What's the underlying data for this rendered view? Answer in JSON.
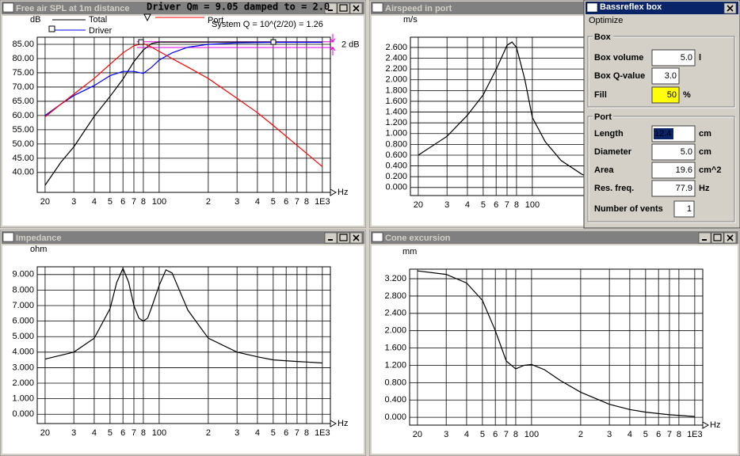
{
  "chart_data": [
    {
      "type": "line",
      "title": "Free air SPL at 1m distance",
      "ylabel": "dB",
      "xlabel": "Hz",
      "xscale": "log",
      "grid": true,
      "xlim": [
        17.9,
        1120
      ],
      "ylim": [
        33,
        87.5
      ],
      "xticks": [
        20,
        {
          "value": 30,
          "label": "3"
        },
        {
          "value": 40,
          "label": "4"
        },
        {
          "value": 50,
          "label": "5"
        },
        {
          "value": 60,
          "label": "6"
        },
        {
          "value": 70,
          "label": "7"
        },
        {
          "value": 80,
          "label": "8"
        },
        100,
        {
          "value": 200,
          "label": "2"
        },
        {
          "value": 300,
          "label": "3"
        },
        {
          "value": 400,
          "label": "4"
        },
        {
          "value": 500,
          "label": "5"
        },
        {
          "value": 600,
          "label": "6"
        },
        {
          "value": 700,
          "label": "7"
        },
        {
          "value": 800,
          "label": "8"
        },
        {
          "value": 1000,
          "label": "1E3"
        }
      ],
      "yticks": [
        {
          "value": 40,
          "label": "40.00"
        },
        {
          "value": 45,
          "label": "45.00"
        },
        {
          "value": 50,
          "label": "50.00"
        },
        {
          "value": 55,
          "label": "55.00"
        },
        {
          "value": 60,
          "label": "60.00"
        },
        {
          "value": 65,
          "label": "65.00"
        },
        {
          "value": 70,
          "label": "70.00"
        },
        {
          "value": 75,
          "label": "75.00"
        },
        {
          "value": 80,
          "label": "80.00"
        },
        {
          "value": 85,
          "label": "85.00"
        }
      ],
      "x": [
        20,
        25,
        30,
        40,
        50,
        60,
        70,
        80,
        90,
        100,
        120,
        150,
        200,
        300,
        400,
        500,
        700,
        1000
      ],
      "series": [
        {
          "name": "Total",
          "color": "#000000",
          "values": [
            35.5,
            43.6,
            49,
            59.7,
            66.7,
            72.8,
            78.9,
            83,
            85.3,
            85.8,
            85.8,
            85.8,
            85.8,
            85.8,
            85.8,
            85.8,
            85.8,
            85.8
          ]
        },
        {
          "name": "Driver",
          "color": "#0000ff",
          "values": [
            60,
            64,
            67,
            70.5,
            74,
            75.5,
            75.5,
            74.8,
            77,
            79.5,
            82,
            84,
            85,
            85.5,
            85.6,
            85.7,
            85.7,
            85.7
          ]
        },
        {
          "name": "Port",
          "color": "#ff0000",
          "values": [
            59.5,
            64,
            67.5,
            73,
            78,
            82,
            84.5,
            85.3,
            84,
            82.5,
            80,
            77,
            73,
            66,
            61,
            56.5,
            49.5,
            42
          ]
        }
      ],
      "header": "Driver Qm = 9.05 damped to = 2.0",
      "system_q": "System Q = 10^(2/20) = 1.26",
      "reference_label": "2 dB",
      "reference_color": "#e000e0",
      "reference_lines": [
        85.9,
        83.9
      ]
    },
    {
      "type": "line",
      "title": "Airspeed in port",
      "ylabel": "m/s",
      "xlabel": "Hz",
      "xscale": "log",
      "grid": true,
      "xlim": [
        17.9,
        1120
      ],
      "ylim": [
        -0.15,
        2.79
      ],
      "xticks": [
        20,
        {
          "value": 30,
          "label": "3"
        },
        {
          "value": 40,
          "label": "4"
        },
        {
          "value": 50,
          "label": "5"
        },
        {
          "value": 60,
          "label": "6"
        },
        {
          "value": 70,
          "label": "7"
        },
        {
          "value": 80,
          "label": "8"
        },
        100
      ],
      "yticks": [
        {
          "value": 0,
          "label": "0.000"
        },
        {
          "value": 0.2,
          "label": "0.200"
        },
        {
          "value": 0.4,
          "label": "0.400"
        },
        {
          "value": 0.6,
          "label": "0.600"
        },
        {
          "value": 0.8,
          "label": "0.800"
        },
        {
          "value": 1.0,
          "label": "1.000"
        },
        {
          "value": 1.2,
          "label": "1.200"
        },
        {
          "value": 1.4,
          "label": "1.400"
        },
        {
          "value": 1.6,
          "label": "1.600"
        },
        {
          "value": 1.8,
          "label": "1.800"
        },
        {
          "value": 2.0,
          "label": "2.000"
        },
        {
          "value": 2.2,
          "label": "2.200"
        },
        {
          "value": 2.4,
          "label": "2.400"
        },
        {
          "value": 2.6,
          "label": "2.600"
        }
      ],
      "x": [
        20,
        30,
        40,
        50,
        60,
        70,
        75,
        80,
        90,
        100,
        120,
        150,
        200,
        210
      ],
      "series": [
        {
          "color": "#000000",
          "values": [
            0.6,
            0.95,
            1.34,
            1.72,
            2.19,
            2.64,
            2.7,
            2.6,
            2.0,
            1.3,
            0.85,
            0.5,
            0.25,
            0.22
          ]
        }
      ]
    },
    {
      "type": "line",
      "title": "Impedance",
      "ylabel": "ohm",
      "xlabel": "Hz",
      "xscale": "log",
      "grid": true,
      "xlim": [
        17.9,
        1120
      ],
      "ylim": [
        -0.6,
        9.5
      ],
      "xticks": [
        20,
        {
          "value": 30,
          "label": "3"
        },
        {
          "value": 40,
          "label": "4"
        },
        {
          "value": 50,
          "label": "5"
        },
        {
          "value": 60,
          "label": "6"
        },
        {
          "value": 70,
          "label": "7"
        },
        {
          "value": 80,
          "label": "8"
        },
        100,
        {
          "value": 200,
          "label": "2"
        },
        {
          "value": 300,
          "label": "3"
        },
        {
          "value": 400,
          "label": "4"
        },
        {
          "value": 500,
          "label": "5"
        },
        {
          "value": 600,
          "label": "6"
        },
        {
          "value": 700,
          "label": "7"
        },
        {
          "value": 800,
          "label": "8"
        },
        {
          "value": 1000,
          "label": "1E3"
        }
      ],
      "yticks": [
        {
          "value": 0,
          "label": "0.000"
        },
        {
          "value": 1,
          "label": "1.000"
        },
        {
          "value": 2,
          "label": "2.000"
        },
        {
          "value": 3,
          "label": "3.000"
        },
        {
          "value": 4,
          "label": "4.000"
        },
        {
          "value": 5,
          "label": "5.000"
        },
        {
          "value": 6,
          "label": "6.000"
        },
        {
          "value": 7,
          "label": "7.000"
        },
        {
          "value": 8,
          "label": "8.000"
        },
        {
          "value": 9,
          "label": "9.000"
        }
      ],
      "x": [
        20,
        30,
        40,
        50,
        55,
        60,
        65,
        70,
        75,
        80,
        85,
        90,
        100,
        110,
        120,
        150,
        200,
        300,
        400,
        500,
        700,
        1000
      ],
      "series": [
        {
          "color": "#000000",
          "values": [
            3.55,
            4.0,
            4.9,
            6.8,
            8.5,
            9.4,
            8.5,
            7.0,
            6.2,
            6.0,
            6.2,
            6.9,
            8.3,
            9.3,
            9.1,
            6.7,
            4.9,
            4.0,
            3.7,
            3.5,
            3.4,
            3.3
          ]
        }
      ]
    },
    {
      "type": "line",
      "title": "Cone excursion",
      "ylabel": "mm",
      "xlabel": "Hz",
      "xscale": "log",
      "grid": true,
      "xlim": [
        17.9,
        1120
      ],
      "ylim": [
        -0.18,
        3.42
      ],
      "xticks": [
        20,
        {
          "value": 30,
          "label": "3"
        },
        {
          "value": 40,
          "label": "4"
        },
        {
          "value": 50,
          "label": "5"
        },
        {
          "value": 60,
          "label": "6"
        },
        {
          "value": 70,
          "label": "7"
        },
        {
          "value": 80,
          "label": "8"
        },
        100,
        {
          "value": 200,
          "label": "2"
        },
        {
          "value": 300,
          "label": "3"
        },
        {
          "value": 400,
          "label": "4"
        },
        {
          "value": 500,
          "label": "5"
        },
        {
          "value": 600,
          "label": "6"
        },
        {
          "value": 700,
          "label": "7"
        },
        {
          "value": 800,
          "label": "8"
        },
        {
          "value": 1000,
          "label": "1E3"
        }
      ],
      "yticks": [
        {
          "value": 0,
          "label": "0.000"
        },
        {
          "value": 0.4,
          "label": "0.400"
        },
        {
          "value": 0.8,
          "label": "0.800"
        },
        {
          "value": 1.2,
          "label": "1.200"
        },
        {
          "value": 1.6,
          "label": "1.600"
        },
        {
          "value": 2.0,
          "label": "2.000"
        },
        {
          "value": 2.4,
          "label": "2.400"
        },
        {
          "value": 2.8,
          "label": "2.800"
        },
        {
          "value": 3.2,
          "label": "3.200"
        }
      ],
      "x": [
        20,
        30,
        40,
        50,
        60,
        70,
        80,
        90,
        100,
        120,
        150,
        200,
        300,
        400,
        500,
        700,
        1000
      ],
      "series": [
        {
          "color": "#000000",
          "values": [
            3.38,
            3.3,
            3.1,
            2.7,
            2.0,
            1.3,
            1.12,
            1.2,
            1.22,
            1.1,
            0.85,
            0.58,
            0.3,
            0.18,
            0.12,
            0.06,
            0.02
          ]
        }
      ]
    }
  ],
  "dialog": {
    "title": "Bassreflex box",
    "menu": "Optimize",
    "box": {
      "label": "Box",
      "fields": [
        {
          "label": "Box volume",
          "value": "5.0",
          "unit": "l"
        },
        {
          "label": "Box Q-value",
          "value": "3.0"
        },
        {
          "label": "Fill",
          "value": "50",
          "unit": "%"
        }
      ]
    },
    "port": {
      "label": "Port",
      "fields": [
        {
          "label": "Length",
          "value": "12.4",
          "unit": "cm"
        },
        {
          "label": "Diameter",
          "value": "5.0",
          "unit": "cm"
        },
        {
          "label": "Area",
          "value": "19.6",
          "unit": "cm^2"
        },
        {
          "label": "Res. freq.",
          "value": "77.9",
          "unit": "Hz"
        },
        {
          "label": "Number of vents",
          "value": "1"
        }
      ]
    }
  }
}
